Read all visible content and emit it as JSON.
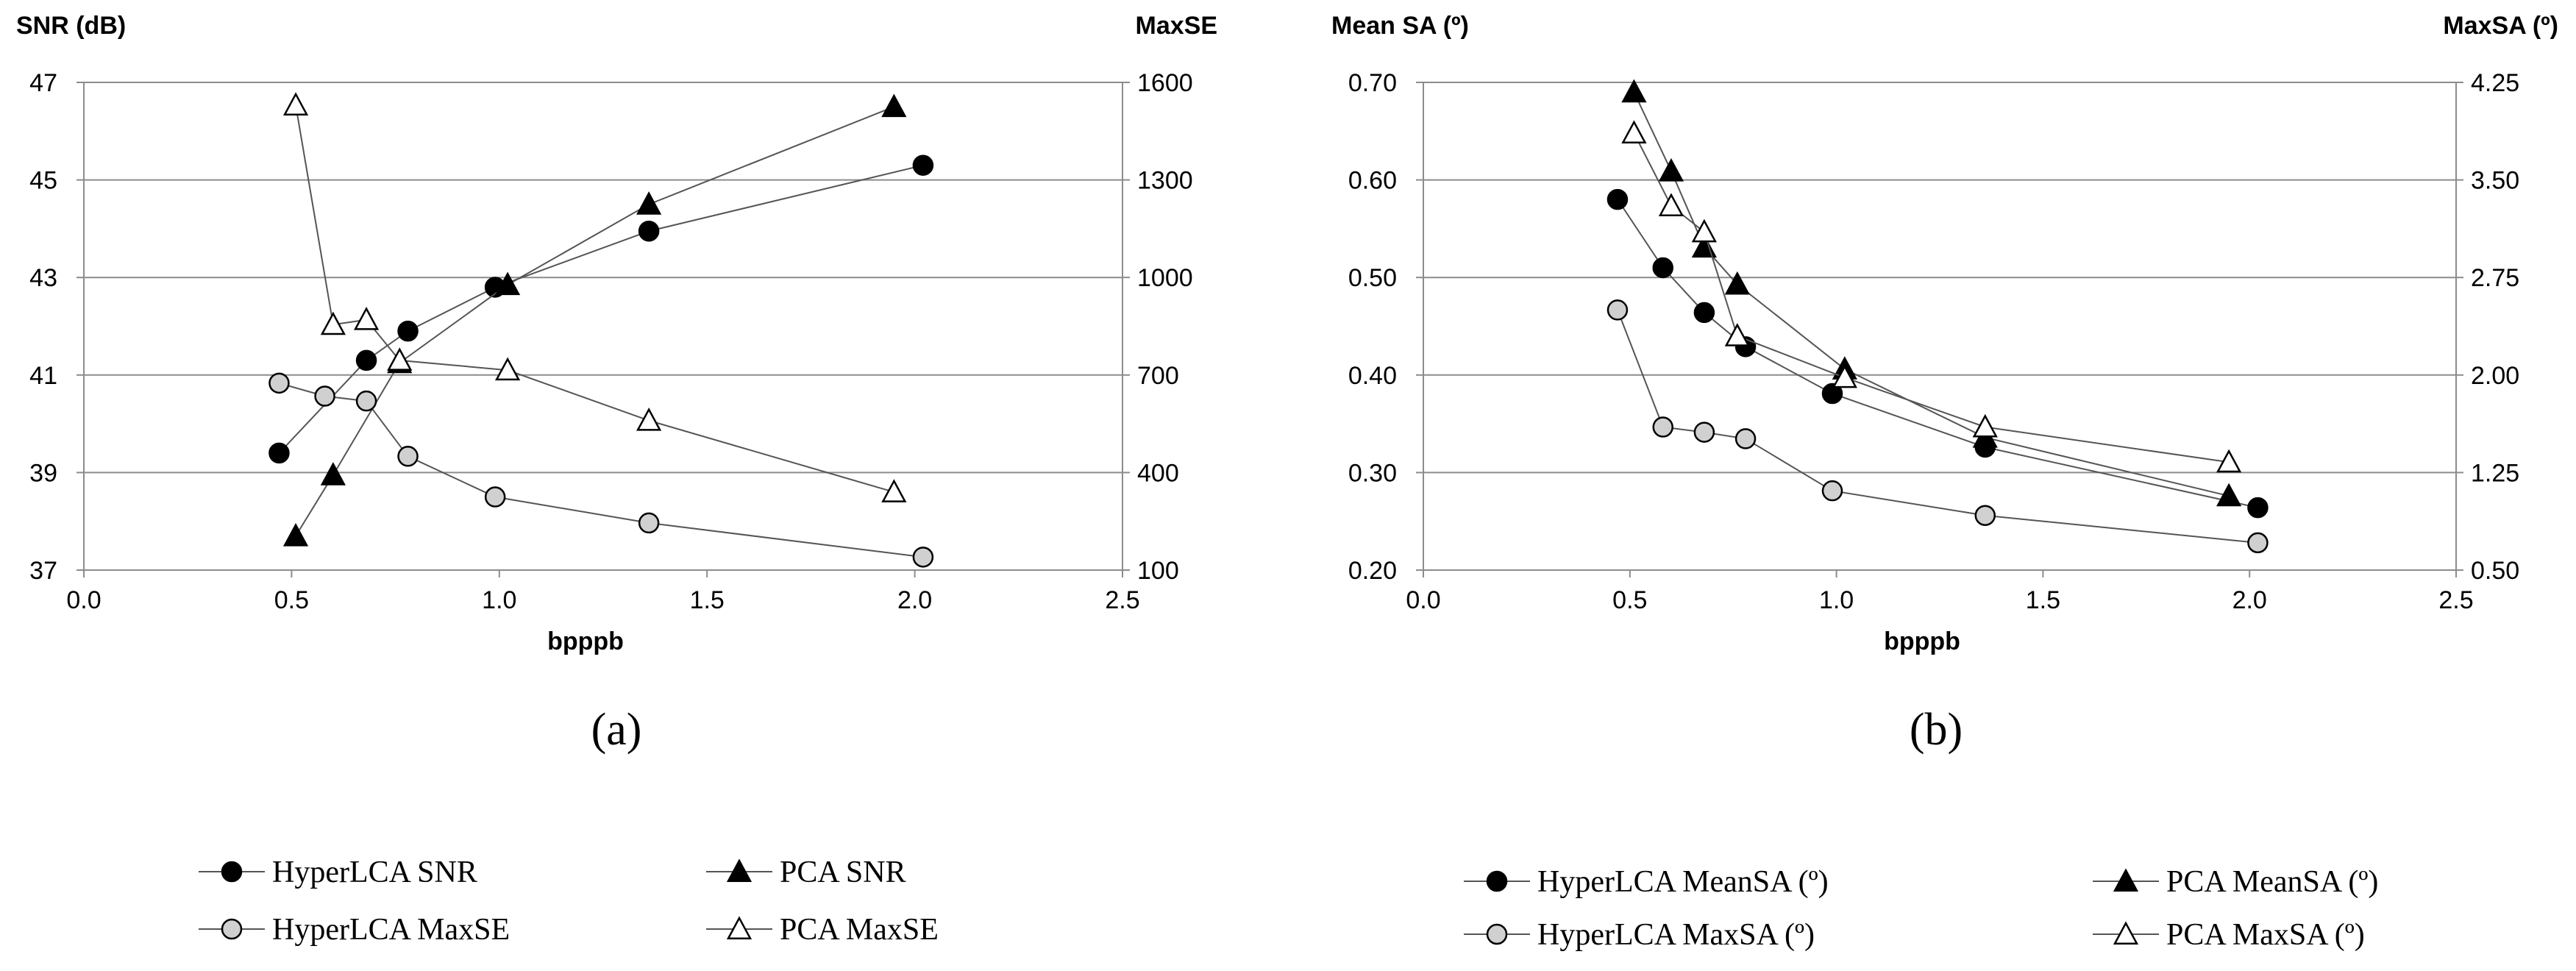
{
  "chart_data": [
    {
      "type": "line",
      "panel_label": "(a)",
      "xlabel": "bpppb",
      "ylabel_left": "SNR (dB)",
      "ylabel_right": "MaxSE",
      "xlim": [
        0,
        2.5
      ],
      "x_ticks": [
        "0.0",
        "0.5",
        "1.0",
        "1.5",
        "2.0",
        "2.5"
      ],
      "ylim_left": [
        37,
        47
      ],
      "y_ticks_left": [
        "37",
        "39",
        "41",
        "43",
        "45",
        "47"
      ],
      "ylim_right": [
        100,
        1600
      ],
      "y_ticks_right": [
        "100",
        "400",
        "700",
        "1000",
        "1300",
        "1600"
      ],
      "grid": true,
      "legend_position": "bottom",
      "series": [
        {
          "name": "HyperLCA SNR",
          "axis": "left",
          "marker": "circle",
          "fill": "#000000",
          "x": [
            0.47,
            0.68,
            0.78,
            0.99,
            1.36,
            2.02
          ],
          "y": [
            39.4,
            41.3,
            41.9,
            42.8,
            43.95,
            45.3
          ]
        },
        {
          "name": "PCA SNR",
          "axis": "left",
          "marker": "triangle",
          "fill": "#000000",
          "x": [
            0.51,
            0.6,
            0.76,
            1.02,
            1.36,
            1.95
          ],
          "y": [
            37.7,
            38.95,
            41.25,
            42.85,
            44.5,
            46.5
          ]
        },
        {
          "name": "HyperLCA MaxSE",
          "axis": "right",
          "marker": "circle",
          "fill": "#d0d0d0",
          "x": [
            0.47,
            0.58,
            0.68,
            0.78,
            0.99,
            1.36,
            2.02
          ],
          "y": [
            675,
            635,
            620,
            450,
            325,
            245,
            140
          ]
        },
        {
          "name": "PCA MaxSE",
          "axis": "right",
          "marker": "triangle",
          "fill": "#ffffff",
          "x": [
            0.51,
            0.6,
            0.68,
            0.76,
            1.02,
            1.36,
            1.95
          ],
          "y": [
            1530,
            855,
            870,
            745,
            715,
            560,
            340
          ]
        }
      ]
    },
    {
      "type": "line",
      "panel_label": "(b)",
      "xlabel": "bpppb",
      "ylabel_left": "Mean SA (º)",
      "ylabel_right": "MaxSA (º)",
      "xlim": [
        0,
        2.5
      ],
      "x_ticks": [
        "0.0",
        "0.5",
        "1.0",
        "1.5",
        "2.0",
        "2.5"
      ],
      "ylim_left": [
        0.2,
        0.7
      ],
      "y_ticks_left": [
        "0.20",
        "0.30",
        "0.40",
        "0.50",
        "0.60",
        "0.70"
      ],
      "ylim_right": [
        0.5,
        4.25
      ],
      "y_ticks_right": [
        "0.50",
        "1.25",
        "2.00",
        "2.75",
        "3.50",
        "4.25"
      ],
      "grid": true,
      "legend_position": "bottom",
      "series": [
        {
          "name": "HyperLCA MeanSA (º)",
          "axis": "left",
          "marker": "circle",
          "fill": "#000000",
          "x": [
            0.47,
            0.58,
            0.68,
            0.78,
            0.99,
            1.36,
            2.02
          ],
          "y": [
            0.58,
            0.51,
            0.464,
            0.429,
            0.381,
            0.326,
            0.264
          ]
        },
        {
          "name": "PCA MeanSA (º)",
          "axis": "left",
          "marker": "triangle",
          "fill": "#000000",
          "x": [
            0.51,
            0.6,
            0.68,
            0.76,
            1.02,
            1.36,
            1.95
          ],
          "y": [
            0.69,
            0.609,
            0.531,
            0.493,
            0.406,
            0.336,
            0.276
          ]
        },
        {
          "name": "HyperLCA MaxSA (º)",
          "axis": "right",
          "marker": "circle",
          "fill": "#d0d0d0",
          "x": [
            0.47,
            0.58,
            0.68,
            0.78,
            0.99,
            1.36,
            2.02
          ],
          "y": [
            2.5,
            1.6,
            1.56,
            1.51,
            1.11,
            0.92,
            0.71
          ]
        },
        {
          "name": "PCA MaxSA (º)",
          "axis": "right",
          "marker": "triangle",
          "fill": "#ffffff",
          "x": [
            0.51,
            0.6,
            0.68,
            0.76,
            1.02,
            1.36,
            1.95
          ],
          "y": [
            3.86,
            3.3,
            3.1,
            2.3,
            1.98,
            1.6,
            1.33
          ]
        }
      ]
    }
  ]
}
